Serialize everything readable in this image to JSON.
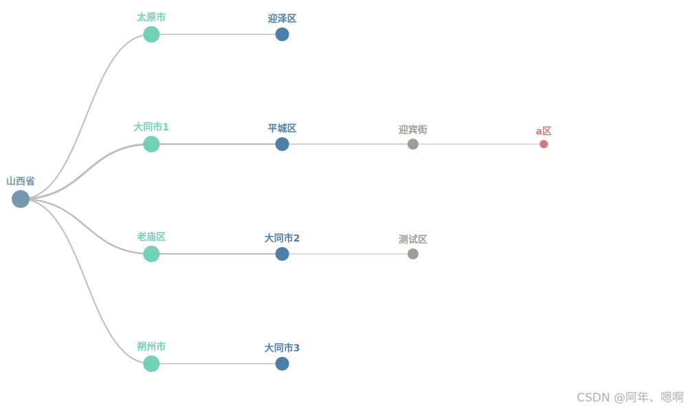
{
  "tree": {
    "label": "山西省",
    "children": [
      {
        "label": "太原市",
        "children": [
          {
            "label": "迎泽区"
          }
        ]
      },
      {
        "label": "大同市1",
        "children": [
          {
            "label": "平城区",
            "children": [
              {
                "label": "迎宾街",
                "children": [
                  {
                    "label": "a区"
                  }
                ]
              }
            ]
          }
        ]
      },
      {
        "label": "老庙区",
        "children": [
          {
            "label": "大同市2",
            "children": [
              {
                "label": "测试区"
              }
            ]
          }
        ]
      },
      {
        "label": "朔州市",
        "children": [
          {
            "label": "大同市3"
          }
        ]
      }
    ]
  },
  "watermark": "CSDN @阿年、嗯啊"
}
